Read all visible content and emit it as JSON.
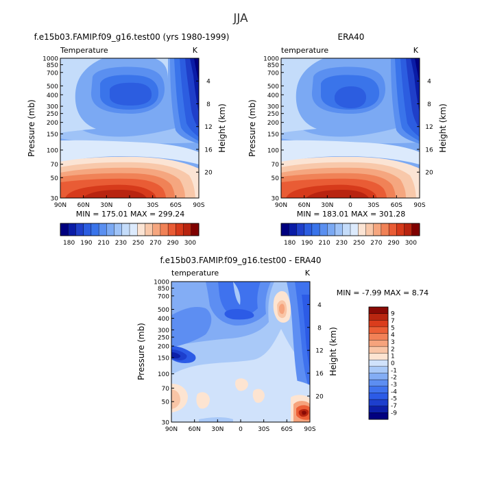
{
  "figure_title": "JJA",
  "colors": {
    "temp_levels": [
      "#00007f",
      "#0a1ca6",
      "#1f3fc9",
      "#2c5de0",
      "#3a74ea",
      "#5a8ff0",
      "#7ba9f3",
      "#9fc3f7",
      "#c4dcfa",
      "#dceafc",
      "#fbe4d4",
      "#f8c8aa",
      "#f5a67f",
      "#f08257",
      "#e95c35",
      "#d63a1b",
      "#b82410",
      "#7f0000"
    ],
    "diff_levels": [
      "#02007f",
      "#0d1fa8",
      "#1d3fcd",
      "#2c5be6",
      "#3f72ee",
      "#5d8ef2",
      "#83adf5",
      "#a9c9f8",
      "#d0e2fb",
      "#fde4d1",
      "#f9c5a6",
      "#f6a37c",
      "#f28157",
      "#ec5f36",
      "#db3d1c",
      "#b92610",
      "#8a0a05"
    ]
  },
  "panels": {
    "left": {
      "title": "f.e15b03.FAMIP.f09_g16.test00 (yrs 1980-1999)",
      "variable": "Temperature",
      "units": "K",
      "ylabel": "Pressure (mb)",
      "ylabel2": "Height (km)",
      "min_max": "MIN = 175.01   MAX = 299.24"
    },
    "right": {
      "title": "ERA40",
      "variable": "temperature",
      "units": "K",
      "ylabel": "Pressure (mb)",
      "ylabel2": "Height (km)",
      "min_max": "MIN = 183.01   MAX = 301.28"
    },
    "bottom": {
      "title": "f.e15b03.FAMIP.f09_g16.test00 - ERA40",
      "variable": "temperature",
      "units": "K",
      "ylabel": "Pressure (mb)",
      "ylabel2": "Height (km)",
      "min_max": "MIN =   -7.99   MAX =    8.74"
    }
  },
  "chart_data": [
    {
      "type": "heatmap",
      "title": "f.e15b03.FAMIP.f09_g16.test00 (yrs 1980-1999)",
      "subtitle": "Temperature",
      "units": "K",
      "x_ticks": [
        "90N",
        "60N",
        "30N",
        "0",
        "30S",
        "60S",
        "90S"
      ],
      "x_values": [
        90,
        60,
        30,
        0,
        -30,
        -60,
        -90
      ],
      "y_ticks": [
        1000,
        850,
        700,
        500,
        400,
        300,
        250,
        200,
        150,
        100,
        70,
        50,
        30
      ],
      "y_scale": "log",
      "ylim": [
        1000,
        30
      ],
      "height_ticks": [
        4,
        8,
        12,
        16,
        20
      ],
      "min": 175.01,
      "max": 299.24,
      "colorbar_labels": [
        "180",
        "190",
        "210",
        "230",
        "250",
        "270",
        "290",
        "300"
      ]
    },
    {
      "type": "heatmap",
      "title": "ERA40",
      "subtitle": "temperature",
      "units": "K",
      "x_ticks": [
        "90N",
        "60N",
        "30N",
        "0",
        "30S",
        "60S",
        "90S"
      ],
      "x_values": [
        90,
        60,
        30,
        0,
        -30,
        -60,
        -90
      ],
      "y_ticks": [
        1000,
        850,
        700,
        500,
        400,
        300,
        250,
        200,
        150,
        100,
        70,
        50,
        30
      ],
      "y_scale": "log",
      "ylim": [
        1000,
        30
      ],
      "height_ticks": [
        4,
        8,
        12,
        16,
        20
      ],
      "min": 183.01,
      "max": 301.28,
      "colorbar_labels": [
        "180",
        "190",
        "210",
        "230",
        "250",
        "270",
        "290",
        "300"
      ]
    },
    {
      "type": "heatmap",
      "title": "f.e15b03.FAMIP.f09_g16.test00 - ERA40",
      "subtitle": "temperature",
      "units": "K",
      "x_ticks": [
        "90N",
        "60N",
        "30N",
        "0",
        "30S",
        "60S",
        "90S"
      ],
      "x_values": [
        90,
        60,
        30,
        0,
        -30,
        -60,
        -90
      ],
      "y_ticks": [
        1000,
        850,
        700,
        500,
        400,
        300,
        250,
        200,
        150,
        100,
        70,
        50,
        30
      ],
      "y_scale": "log",
      "ylim": [
        1000,
        30
      ],
      "height_ticks": [
        4,
        8,
        12,
        16,
        20
      ],
      "min": -7.99,
      "max": 8.74,
      "colorbar_labels": [
        "9",
        "7",
        "5",
        "4",
        "3",
        "2",
        "1",
        "0",
        "-1",
        "-2",
        "-3",
        "-4",
        "-5",
        "-7",
        "-9"
      ]
    }
  ]
}
